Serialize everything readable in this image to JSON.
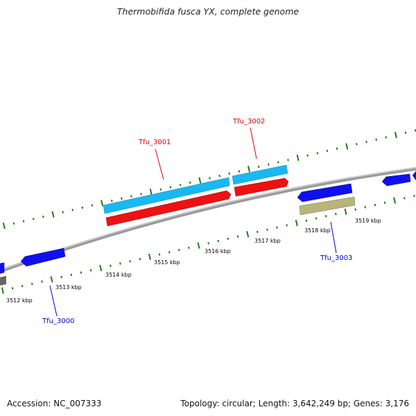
{
  "title": "Thermobifida fusca YX, complete genome",
  "footer": {
    "accession": "Accession: NC_007333",
    "summary": "Topology: circular; Length: 3,642,249 bp; Genes: 3,176"
  },
  "colors": {
    "light_blue": "#1ab8f0",
    "red": "#ee1111",
    "blue": "#1010ee",
    "olive": "#b8b47a",
    "backbone": "#888888",
    "tick": "#1a7a1a",
    "label_red": "#dd0000",
    "label_blue": "#0000bb"
  },
  "tick_labels": [
    "3512 kbp",
    "3513 kbp",
    "3514 kbp",
    "3515 kbp",
    "3516 kbp",
    "3517 kbp",
    "3518 kbp",
    "3519 kbp"
  ],
  "gene_labels": [
    "Tfu_3000",
    "Tfu_3001",
    "Tfu_3002",
    "Tfu_3003"
  ]
}
